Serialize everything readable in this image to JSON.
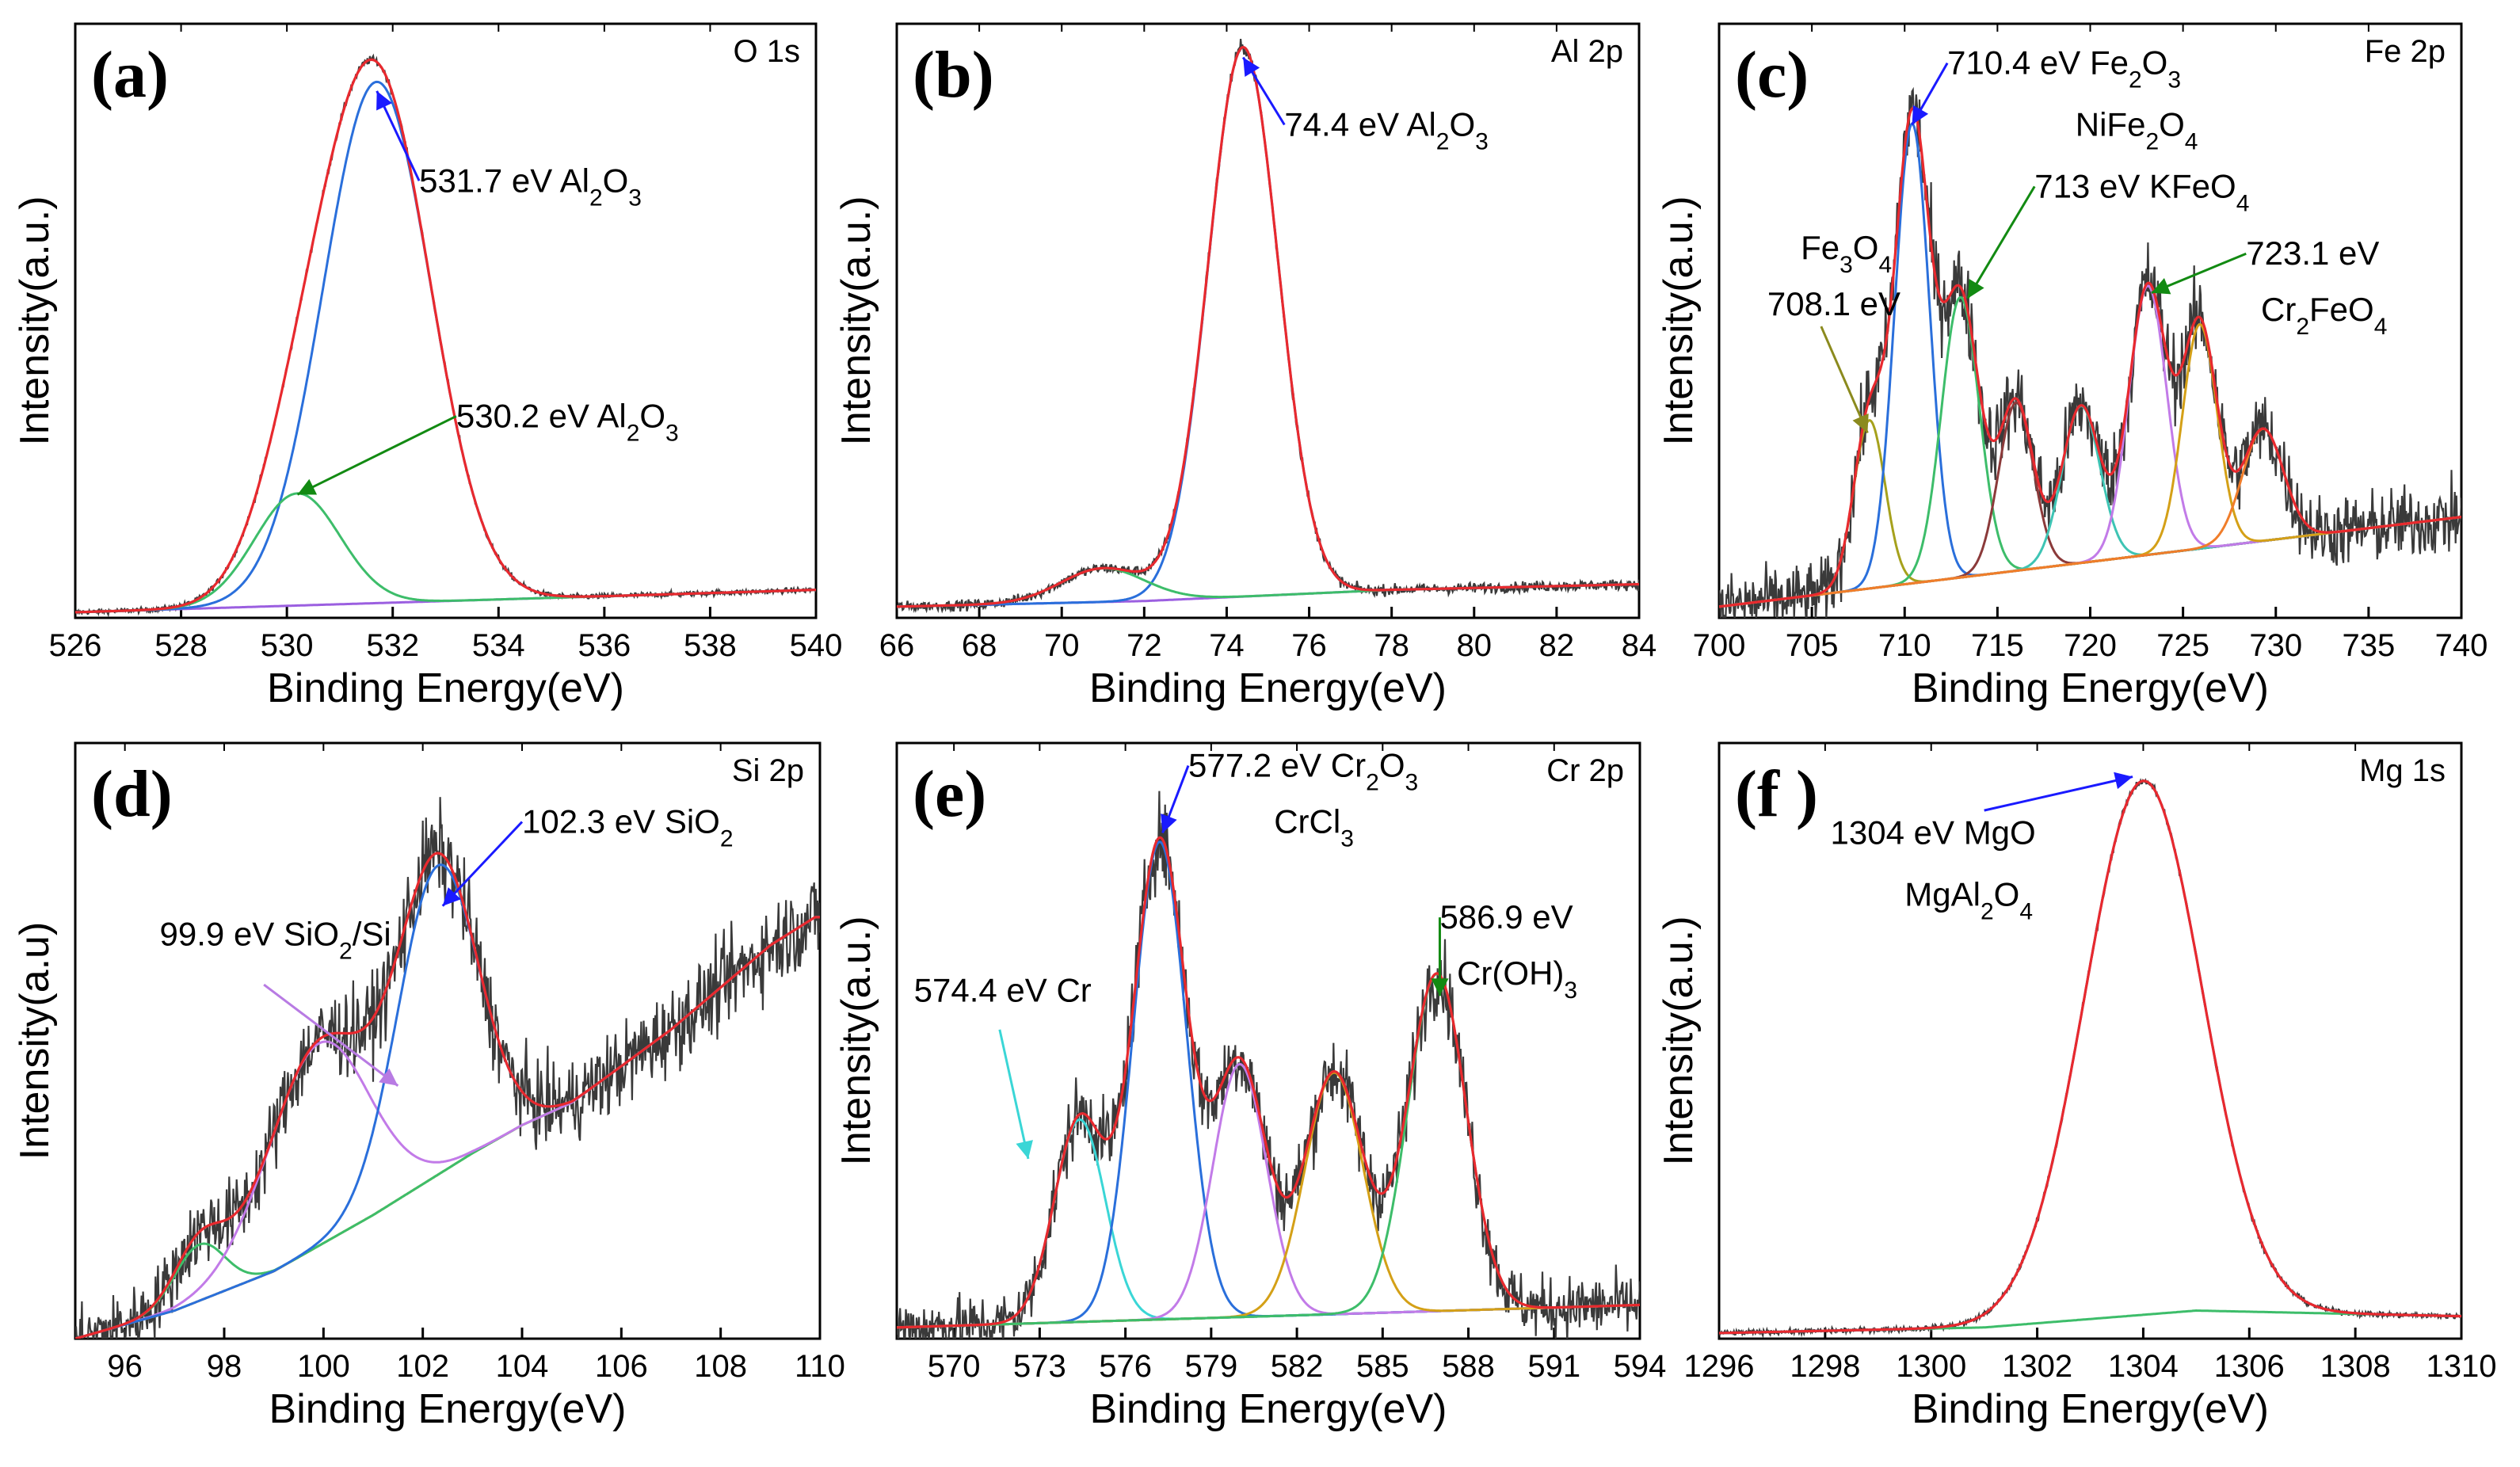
{
  "colors": {
    "frame": "#000000",
    "raw": "#3a3a3a",
    "envelope": "#e8292e",
    "background": "#9b5fe0",
    "blue_arrow": "#1a1aff",
    "green_arrow": "#128a12"
  },
  "chart_data": [
    {
      "type": "line",
      "panel": "(a)",
      "element": "O 1s",
      "xlabel": "Binding Energy(eV)",
      "ylabel": "Intensity(a.u.)",
      "xlim": [
        526,
        540
      ],
      "xticks": [
        526,
        528,
        530,
        532,
        534,
        536,
        538,
        540
      ],
      "xtick_labels": [
        "526",
        "528",
        "530",
        "532",
        "534",
        "536",
        "538",
        "540"
      ],
      "ylim": [
        0,
        1.06
      ],
      "noise": 0.004,
      "background": {
        "color": "#9b5fe0",
        "points": [
          [
            526,
            0.01
          ],
          [
            540,
            0.05
          ]
        ]
      },
      "peaks": [
        {
          "center": 531.7,
          "height": 0.93,
          "fwhm": 2.4,
          "color": "#2a6fdb"
        },
        {
          "center": 530.2,
          "height": 0.2,
          "fwhm": 1.9,
          "color": "#3dbd6a"
        }
      ],
      "annotations": [
        {
          "label": "531.7 eV Al",
          "sub": "2",
          "label2": "O",
          "sub2": "3",
          "tx": 532.5,
          "ty": 0.76,
          "ax": 531.7,
          "ay": 0.94,
          "color": "#1a1aff"
        },
        {
          "label": "530.2 eV Al",
          "sub": "2",
          "label2": "O",
          "sub2": "3",
          "tx": 533.2,
          "ty": 0.34,
          "ax": 530.2,
          "ay": 0.22,
          "color": "#128a12"
        }
      ]
    },
    {
      "type": "line",
      "panel": "(b)",
      "element": "Al 2p",
      "xlabel": "Binding Energy(eV)",
      "ylabel": "Intensity(a.u.)",
      "xlim": [
        66,
        84
      ],
      "xticks": [
        66,
        68,
        70,
        72,
        74,
        76,
        78,
        80,
        82,
        84
      ],
      "xtick_labels": [
        "66",
        "68",
        "70",
        "72",
        "74",
        "76",
        "78",
        "80",
        "82",
        "84"
      ],
      "ylim": [
        0,
        1.06
      ],
      "noise": 0.008,
      "background": {
        "color": "#9b5fe0",
        "points": [
          [
            66,
            0.02
          ],
          [
            72,
            0.03
          ],
          [
            78,
            0.05
          ],
          [
            84,
            0.06
          ]
        ]
      },
      "peaks": [
        {
          "center": 74.4,
          "height": 0.98,
          "fwhm": 2.0,
          "color": "#2a6fdb"
        },
        {
          "center": 71.0,
          "height": 0.06,
          "fwhm": 2.4,
          "color": "#3dbd6a"
        }
      ],
      "annotations": [
        {
          "label": "74.4 eV  Al",
          "sub": "2",
          "label2": "O",
          "sub2": "3",
          "tx": 75.4,
          "ty": 0.86,
          "ax": 74.4,
          "ay": 1.0,
          "color": "#1a1aff"
        }
      ]
    },
    {
      "type": "line",
      "panel": "(c)",
      "element": "Fe 2p",
      "xlabel": "Binding Energy(eV)",
      "ylabel": "Intensity(a.u.)",
      "xlim": [
        700,
        740
      ],
      "xticks": [
        700,
        705,
        710,
        715,
        720,
        725,
        730,
        735,
        740
      ],
      "xtick_labels": [
        "700",
        "705",
        "710",
        "715",
        "720",
        "725",
        "730",
        "735",
        "740"
      ],
      "ylim": [
        0,
        1.06
      ],
      "noise": 0.05,
      "background": {
        "color": "#4aa8d8",
        "points": [
          [
            700,
            0.02
          ],
          [
            740,
            0.18
          ]
        ]
      },
      "peaks": [
        {
          "center": 708.1,
          "height": 0.3,
          "fwhm": 2.0,
          "color": "#a6a11c"
        },
        {
          "center": 710.4,
          "height": 0.82,
          "fwhm": 2.2,
          "color": "#2a6fdb"
        },
        {
          "center": 713.0,
          "height": 0.5,
          "fwhm": 2.4,
          "color": "#3dbd6a"
        },
        {
          "center": 716.0,
          "height": 0.3,
          "fwhm": 2.2,
          "color": "#8b3a3a"
        },
        {
          "center": 719.5,
          "height": 0.28,
          "fwhm": 2.4,
          "color": "#3ec4b4"
        },
        {
          "center": 723.1,
          "height": 0.48,
          "fwhm": 2.4,
          "color": "#c27be8"
        },
        {
          "center": 725.9,
          "height": 0.4,
          "fwhm": 2.2,
          "color": "#d4a017"
        },
        {
          "center": 729.3,
          "height": 0.2,
          "fwhm": 2.6,
          "color": "#f07d2a"
        }
      ],
      "annotations": [
        {
          "label": "710.4 eV   Fe",
          "sub": "2",
          "label2": "O",
          "sub2": "3",
          "tx": 712.3,
          "ty": 0.97,
          "ax": 710.4,
          "ay": 0.88,
          "color": "#1a1aff"
        },
        {
          "label": "NiFe",
          "sub": "2",
          "label2": "O",
          "sub2": "4",
          "tx": 719.2,
          "ty": 0.86,
          "color": "#000000"
        },
        {
          "label": "713 eV   KFeO",
          "sub": "4",
          "tx": 717.0,
          "ty": 0.75,
          "ax": 713.4,
          "ay": 0.57,
          "color": "#128a12"
        },
        {
          "label": "Fe",
          "sub": "3",
          "label2": "O",
          "sub2": "4",
          "tx": 704.4,
          "ty": 0.64,
          "color": "#000000"
        },
        {
          "label": "708.1 eV",
          "tx": 702.6,
          "ty": 0.54,
          "ax": 708.0,
          "ay": 0.33,
          "ox": 705.5,
          "oy": 0.52,
          "color": "#8b8a1e"
        },
        {
          "label": "723.1 eV",
          "tx": 728.4,
          "ty": 0.63,
          "ax": 723.3,
          "ay": 0.58,
          "color": "#128a12"
        },
        {
          "label": "Cr",
          "sub": "2",
          "label2": "FeO",
          "sub2": "4",
          "tx": 729.2,
          "ty": 0.53,
          "color": "#000000"
        }
      ]
    },
    {
      "type": "line",
      "panel": "(d)",
      "element": "Si 2p",
      "xlabel": "Binding Energy(eV)",
      "ylabel": "Intensity(a.u)",
      "xlim": [
        95,
        110
      ],
      "xticks": [
        96,
        98,
        100,
        102,
        104,
        106,
        108,
        110
      ],
      "xtick_labels": [
        "96",
        "98",
        "100",
        "102",
        "104",
        "106",
        "108",
        "110"
      ],
      "ylim": [
        0,
        1.06
      ],
      "noise": 0.05,
      "background": {
        "color": "#d4a017",
        "points": [
          [
            95,
            0.0
          ],
          [
            97,
            0.05
          ],
          [
            99,
            0.12
          ],
          [
            101,
            0.22
          ],
          [
            103,
            0.33
          ],
          [
            104,
            0.38
          ],
          [
            105,
            0.42
          ],
          [
            107,
            0.55
          ],
          [
            109,
            0.7
          ],
          [
            109.9,
            0.75
          ]
        ]
      },
      "peaks": [
        {
          "center": 97.5,
          "height": 0.1,
          "fwhm": 1.2,
          "color": "#3dbd6a"
        },
        {
          "center": 99.9,
          "height": 0.36,
          "fwhm": 2.4,
          "color": "#c27be8"
        },
        {
          "center": 102.3,
          "height": 0.55,
          "fwhm": 1.9,
          "color": "#2a6fdb"
        }
      ],
      "annotations": [
        {
          "label": "102.3 eV  SiO",
          "sub": "2",
          "tx": 104.0,
          "ty": 0.9,
          "ax": 102.4,
          "ay": 0.77,
          "color": "#1a1aff"
        },
        {
          "label": "99.9 eV   SiO",
          "sub": "2",
          "label2": "/Si",
          "tx": 96.7,
          "ty": 0.7,
          "ax": 101.5,
          "ay": 0.45,
          "ox": 98.8,
          "oy": 0.63,
          "color": "#b87be3"
        }
      ]
    },
    {
      "type": "line",
      "panel": "(e)",
      "element": "Cr 2p",
      "xlabel": "Binding Energy(eV)",
      "ylabel": "Intensity(a.u.)",
      "xlim": [
        568,
        594
      ],
      "xticks": [
        570,
        573,
        576,
        579,
        582,
        585,
        588,
        591,
        594
      ],
      "xtick_labels": [
        "570",
        "573",
        "576",
        "579",
        "582",
        "585",
        "588",
        "591",
        "594"
      ],
      "ylim": [
        0,
        1.06
      ],
      "noise": 0.045,
      "background": {
        "color": "#7a4a3a",
        "points": [
          [
            568,
            0.02
          ],
          [
            594,
            0.06
          ]
        ]
      },
      "peaks": [
        {
          "center": 574.4,
          "height": 0.36,
          "fwhm": 2.1,
          "color": "#3ad6d6"
        },
        {
          "center": 577.2,
          "height": 0.85,
          "fwhm": 2.2,
          "color": "#2a6fdb"
        },
        {
          "center": 580.0,
          "height": 0.45,
          "fwhm": 2.2,
          "color": "#c27be8"
        },
        {
          "center": 583.3,
          "height": 0.43,
          "fwhm": 2.4,
          "color": "#d4a017"
        },
        {
          "center": 586.9,
          "height": 0.6,
          "fwhm": 2.4,
          "color": "#3dbd6a"
        }
      ],
      "annotations": [
        {
          "label": "577.2 eV Cr",
          "sub": "2",
          "label2": "O",
          "sub2": "3",
          "tx": 578.2,
          "ty": 1.0,
          "ax": 577.3,
          "ay": 0.9,
          "color": "#1a1aff"
        },
        {
          "label": "CrCl",
          "sub": "3",
          "tx": 581.2,
          "ty": 0.9,
          "color": "#000000"
        },
        {
          "label": "574.4 eV   Cr",
          "tx": 568.6,
          "ty": 0.6,
          "ax": 572.6,
          "ay": 0.32,
          "ox": 571.6,
          "oy": 0.55,
          "color": "#3ad6d6"
        },
        {
          "label": "586.9 eV",
          "tx": 587.0,
          "ty": 0.73,
          "ax": 587.0,
          "ay": 0.61,
          "color": "#128a12"
        },
        {
          "label": "Cr(OH)",
          "sub": "3",
          "tx": 587.6,
          "ty": 0.63,
          "color": "#000000"
        }
      ]
    },
    {
      "type": "line",
      "panel": "(f )",
      "element": "Mg 1s",
      "xlabel": "Binding Energy(eV)",
      "ylabel": "Intensity(a.u.)",
      "xlim": [
        1296,
        1310
      ],
      "xticks": [
        1296,
        1298,
        1300,
        1302,
        1304,
        1306,
        1308,
        1310
      ],
      "xtick_labels": [
        "1296",
        "1298",
        "1300",
        "1302",
        "1304",
        "1306",
        "1308",
        "1310"
      ],
      "ylim": [
        0,
        1.06
      ],
      "noise": 0.004,
      "background": {
        "color": "#3dbd6a",
        "points": [
          [
            1296,
            0.01
          ],
          [
            1301,
            0.02
          ],
          [
            1305,
            0.05
          ],
          [
            1310,
            0.04
          ]
        ]
      },
      "peaks": [
        {
          "center": 1304.0,
          "height": 0.95,
          "fwhm": 2.6,
          "color": "#2a6fdb"
        }
      ],
      "annotations": [
        {
          "label": "1304 eV  MgO",
          "tx": 1298.1,
          "ty": 0.88,
          "ax": 1303.8,
          "ay": 1.0,
          "ox": 1301.0,
          "oy": 0.94,
          "color": "#1a1aff"
        },
        {
          "label": "MgAl",
          "sub": "2",
          "label2": "O",
          "sub2": "4",
          "tx": 1299.5,
          "ty": 0.77,
          "color": "#000000"
        }
      ]
    }
  ]
}
